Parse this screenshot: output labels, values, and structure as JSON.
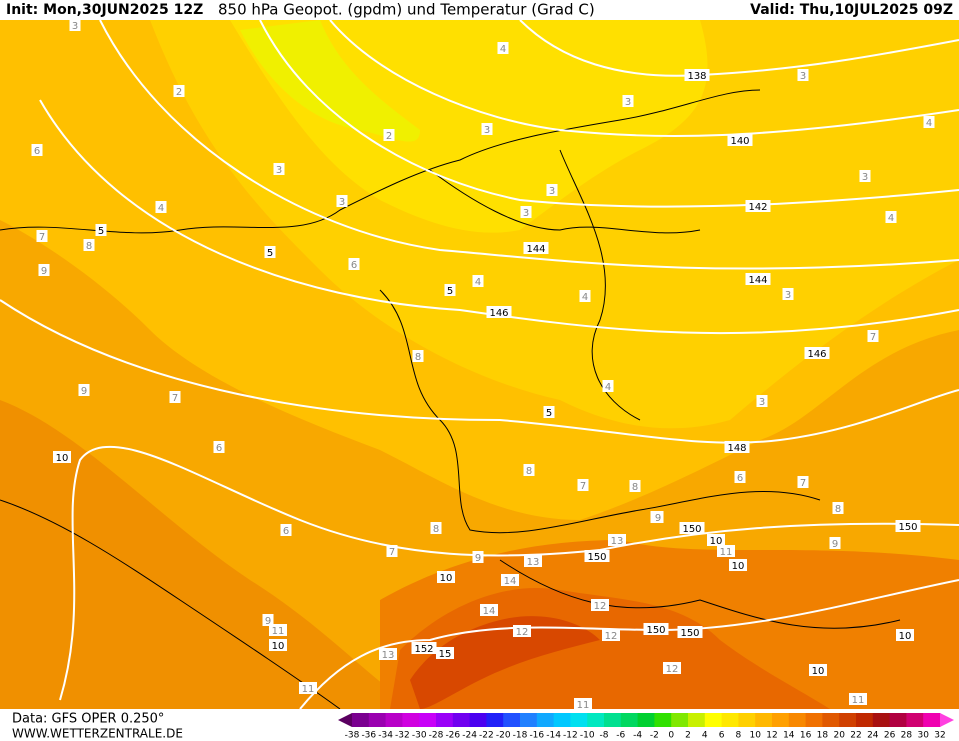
{
  "header": {
    "init": "Init: Mon,30JUN2025 12Z",
    "title": "850 hPa Geopot. (gpdm) und Temperatur (Grad C)",
    "valid": "Valid: Thu,10JUL2025 09Z"
  },
  "footer": {
    "data": "Data: GFS OPER 0.250°",
    "url": "WWW.WETTERZENTRALE.DE"
  },
  "colorbar": {
    "ticks": [
      -38,
      -36,
      -34,
      -32,
      -30,
      -28,
      -26,
      -24,
      -22,
      -20,
      -18,
      -16,
      -14,
      -12,
      -10,
      -8,
      -6,
      -4,
      -2,
      0,
      2,
      4,
      6,
      8,
      10,
      12,
      14,
      16,
      18,
      20,
      22,
      24,
      26,
      28,
      30,
      32
    ],
    "colors": [
      "#5a0060",
      "#7a0090",
      "#9a00b0",
      "#b800c8",
      "#d000e0",
      "#c800f8",
      "#9a00f8",
      "#7000f0",
      "#4a00f0",
      "#2020f8",
      "#2050ff",
      "#2080ff",
      "#10a8ff",
      "#00c8ff",
      "#00e0f0",
      "#00e8c0",
      "#00e090",
      "#00d860",
      "#00d030",
      "#30e000",
      "#80e800",
      "#c8f000",
      "#ffff00",
      "#ffe800",
      "#ffd000",
      "#ffb800",
      "#ffa000",
      "#f88800",
      "#f07000",
      "#e05800",
      "#d04000",
      "#c02800",
      "#a81010",
      "#b00040",
      "#d00070",
      "#f000b0",
      "#ff40e0"
    ]
  },
  "map_labels": {
    "geopotential": [
      "138",
      "140",
      "142",
      "144",
      "144",
      "146",
      "146",
      "148",
      "150",
      "150",
      "150",
      "150",
      "150",
      "152"
    ],
    "temperature": [
      "5",
      "5",
      "5",
      "5",
      "10",
      "10",
      "10",
      "10",
      "10",
      "10",
      "10",
      "15"
    ],
    "isotherm": [
      "3",
      "2",
      "2",
      "3",
      "3",
      "4",
      "3",
      "4",
      "4",
      "4",
      "3",
      "3",
      "3",
      "3",
      "4",
      "4",
      "3",
      "3",
      "3",
      "4",
      "6",
      "6",
      "7",
      "8",
      "8",
      "9",
      "8",
      "9",
      "7",
      "8",
      "7",
      "6",
      "6",
      "7",
      "7",
      "8",
      "6",
      "7",
      "8",
      "9",
      "9",
      "9",
      "11",
      "13",
      "14",
      "14",
      "12",
      "12",
      "13",
      "12",
      "11",
      "13",
      "12",
      "11",
      "11",
      "9",
      "8",
      "9",
      "11"
    ]
  }
}
